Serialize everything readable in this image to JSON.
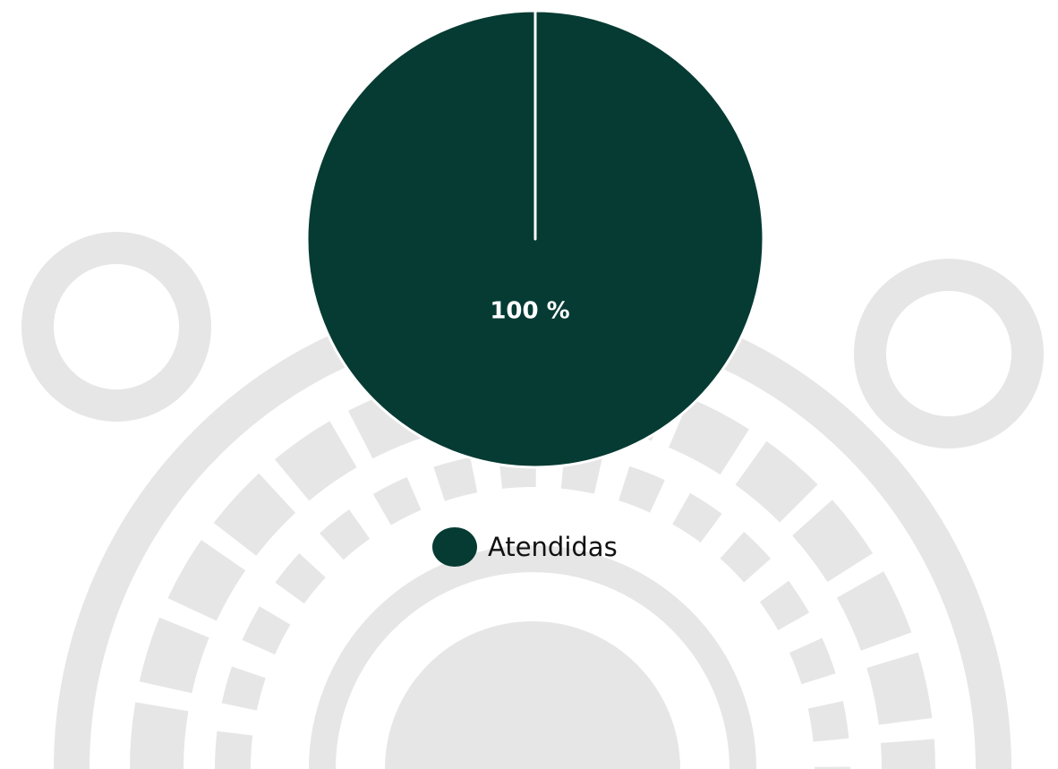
{
  "chart_data": {
    "type": "pie",
    "categories": [
      "Atendidas"
    ],
    "values": [
      100
    ],
    "value_labels": [
      "100 %"
    ],
    "colors": [
      "#053b33"
    ],
    "legend": "bottom"
  }
}
